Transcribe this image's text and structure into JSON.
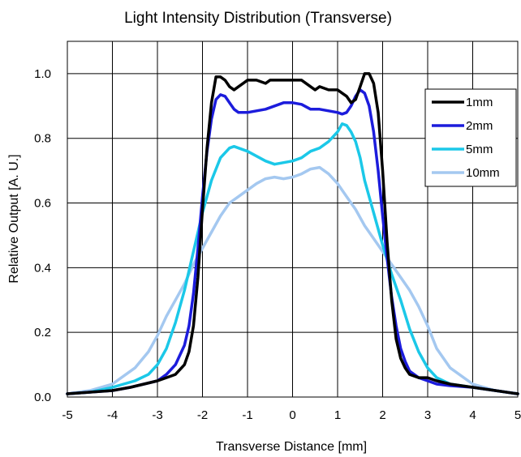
{
  "chart_data": {
    "type": "line",
    "title": "Light Intensity Distribution (Transverse)",
    "xlabel": "Transverse Distance  [mm]",
    "ylabel": "Relative Output  [A. U.]",
    "xlim": [
      -5,
      5
    ],
    "ylim": [
      0,
      1.1
    ],
    "xticks": [
      "-5",
      "-4",
      "-3",
      "-2",
      "-1",
      "0",
      "1",
      "2",
      "3",
      "4",
      "5"
    ],
    "yticks": [
      "0.0",
      "0.2",
      "0.4",
      "0.6",
      "0.8",
      "1.0"
    ],
    "grid": true,
    "legend_position": "top-right",
    "series": [
      {
        "name": "1mm",
        "color": "#000000",
        "x": [
          -5.0,
          -4.5,
          -4.0,
          -3.6,
          -3.3,
          -3.0,
          -2.8,
          -2.6,
          -2.4,
          -2.3,
          -2.2,
          -2.1,
          -2.0,
          -1.9,
          -1.8,
          -1.7,
          -1.6,
          -1.5,
          -1.4,
          -1.3,
          -1.2,
          -1.1,
          -1.0,
          -0.8,
          -0.6,
          -0.5,
          -0.4,
          -0.2,
          0.0,
          0.2,
          0.4,
          0.5,
          0.6,
          0.8,
          1.0,
          1.1,
          1.2,
          1.3,
          1.4,
          1.5,
          1.6,
          1.7,
          1.8,
          1.9,
          2.0,
          2.1,
          2.2,
          2.3,
          2.4,
          2.5,
          2.6,
          2.8,
          3.0,
          3.2,
          3.5,
          4.0,
          4.5,
          5.0
        ],
        "values": [
          0.01,
          0.015,
          0.02,
          0.03,
          0.04,
          0.05,
          0.06,
          0.07,
          0.1,
          0.14,
          0.22,
          0.37,
          0.58,
          0.77,
          0.91,
          0.99,
          0.99,
          0.98,
          0.96,
          0.95,
          0.96,
          0.97,
          0.98,
          0.98,
          0.97,
          0.98,
          0.98,
          0.98,
          0.98,
          0.98,
          0.96,
          0.95,
          0.96,
          0.95,
          0.95,
          0.94,
          0.93,
          0.91,
          0.92,
          0.96,
          1.0,
          1.0,
          0.97,
          0.88,
          0.7,
          0.48,
          0.3,
          0.18,
          0.12,
          0.09,
          0.07,
          0.06,
          0.06,
          0.05,
          0.04,
          0.03,
          0.02,
          0.01
        ]
      },
      {
        "name": "2mm",
        "color": "#1c1cdc",
        "x": [
          -5.0,
          -4.5,
          -4.0,
          -3.6,
          -3.3,
          -3.0,
          -2.8,
          -2.6,
          -2.4,
          -2.3,
          -2.2,
          -2.1,
          -2.0,
          -1.9,
          -1.8,
          -1.7,
          -1.6,
          -1.5,
          -1.4,
          -1.3,
          -1.2,
          -1.0,
          -0.8,
          -0.6,
          -0.4,
          -0.2,
          0.0,
          0.2,
          0.4,
          0.6,
          0.8,
          1.0,
          1.1,
          1.2,
          1.3,
          1.4,
          1.5,
          1.6,
          1.7,
          1.8,
          1.9,
          2.0,
          2.1,
          2.2,
          2.3,
          2.4,
          2.5,
          2.6,
          2.8,
          3.0,
          3.2,
          3.5,
          4.0,
          4.5,
          5.0
        ],
        "values": [
          0.01,
          0.015,
          0.02,
          0.03,
          0.04,
          0.05,
          0.07,
          0.1,
          0.16,
          0.22,
          0.32,
          0.46,
          0.62,
          0.76,
          0.86,
          0.92,
          0.935,
          0.93,
          0.91,
          0.89,
          0.88,
          0.88,
          0.885,
          0.89,
          0.9,
          0.91,
          0.91,
          0.905,
          0.89,
          0.89,
          0.885,
          0.88,
          0.875,
          0.88,
          0.9,
          0.93,
          0.95,
          0.94,
          0.9,
          0.82,
          0.7,
          0.56,
          0.43,
          0.31,
          0.22,
          0.15,
          0.11,
          0.08,
          0.06,
          0.05,
          0.04,
          0.035,
          0.03,
          0.02,
          0.01
        ]
      },
      {
        "name": "5mm",
        "color": "#1bc8e8",
        "x": [
          -5.0,
          -4.5,
          -4.0,
          -3.5,
          -3.2,
          -3.0,
          -2.8,
          -2.6,
          -2.4,
          -2.2,
          -2.0,
          -1.8,
          -1.6,
          -1.4,
          -1.3,
          -1.2,
          -1.0,
          -0.8,
          -0.6,
          -0.4,
          -0.2,
          0.0,
          0.2,
          0.4,
          0.6,
          0.8,
          1.0,
          1.1,
          1.2,
          1.3,
          1.4,
          1.5,
          1.6,
          1.8,
          2.0,
          2.2,
          2.4,
          2.6,
          2.8,
          3.0,
          3.2,
          3.5,
          4.0,
          4.5,
          5.0
        ],
        "values": [
          0.01,
          0.015,
          0.03,
          0.05,
          0.07,
          0.1,
          0.15,
          0.23,
          0.33,
          0.45,
          0.57,
          0.67,
          0.74,
          0.77,
          0.775,
          0.77,
          0.76,
          0.745,
          0.73,
          0.72,
          0.725,
          0.73,
          0.74,
          0.76,
          0.77,
          0.79,
          0.82,
          0.845,
          0.84,
          0.82,
          0.79,
          0.74,
          0.67,
          0.57,
          0.47,
          0.38,
          0.3,
          0.21,
          0.14,
          0.09,
          0.06,
          0.04,
          0.03,
          0.02,
          0.01
        ]
      },
      {
        "name": "10mm",
        "color": "#a4c8f0",
        "x": [
          -5.0,
          -4.5,
          -4.0,
          -3.5,
          -3.2,
          -3.0,
          -2.8,
          -2.6,
          -2.4,
          -2.2,
          -2.0,
          -1.8,
          -1.6,
          -1.4,
          -1.2,
          -1.0,
          -0.8,
          -0.6,
          -0.4,
          -0.2,
          0.0,
          0.2,
          0.4,
          0.6,
          0.8,
          1.0,
          1.2,
          1.4,
          1.6,
          1.8,
          2.0,
          2.2,
          2.4,
          2.6,
          2.8,
          3.0,
          3.2,
          3.5,
          4.0,
          4.5,
          5.0
        ],
        "values": [
          0.01,
          0.02,
          0.04,
          0.09,
          0.14,
          0.19,
          0.25,
          0.3,
          0.35,
          0.41,
          0.46,
          0.51,
          0.56,
          0.6,
          0.62,
          0.64,
          0.66,
          0.675,
          0.68,
          0.675,
          0.68,
          0.69,
          0.705,
          0.71,
          0.69,
          0.66,
          0.62,
          0.58,
          0.53,
          0.49,
          0.45,
          0.41,
          0.37,
          0.33,
          0.28,
          0.22,
          0.15,
          0.09,
          0.04,
          0.02,
          0.01
        ]
      }
    ]
  }
}
